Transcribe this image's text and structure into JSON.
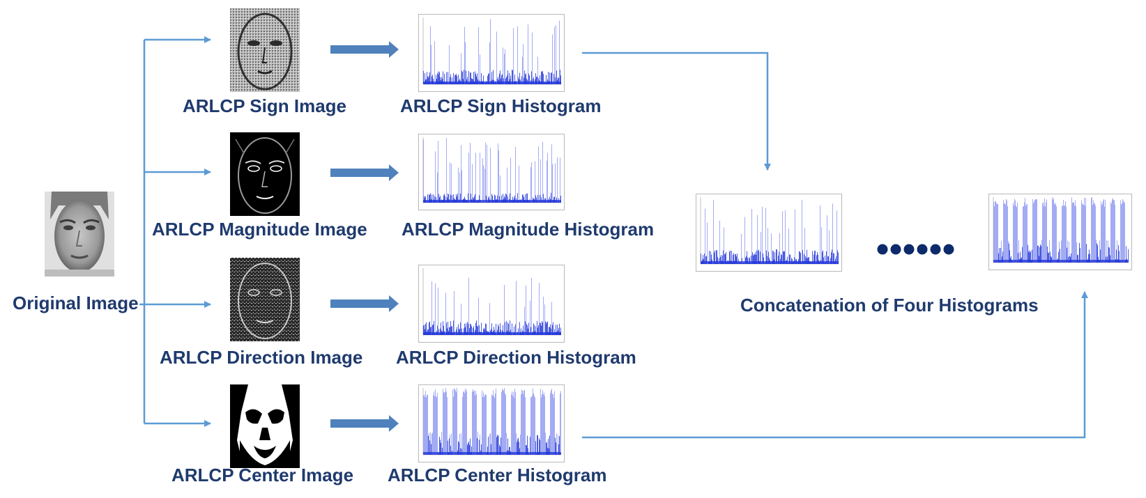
{
  "labels": {
    "original": "Original Image",
    "sign_image": "ARLCP Sign Image",
    "sign_hist": "ARLCP Sign Histogram",
    "mag_image": "ARLCP Magnitude Image",
    "mag_hist": "ARLCP Magnitude Histogram",
    "dir_image": "ARLCP Direction Image",
    "dir_hist": "ARLCP Direction Histogram",
    "center_image": "ARLCP Center Image",
    "center_hist": "ARLCP Center Histogram",
    "concat": "Concatenation of Four Histograms"
  },
  "ellipsis_count": 6,
  "colors": {
    "text": "#1f3a6e",
    "arrow": "#5b9bd5",
    "block_arrow": "#4f81bd",
    "hist_bar": "#1d32d8",
    "hist_light": "#8c96f0",
    "dot": "#0d2a6b"
  }
}
